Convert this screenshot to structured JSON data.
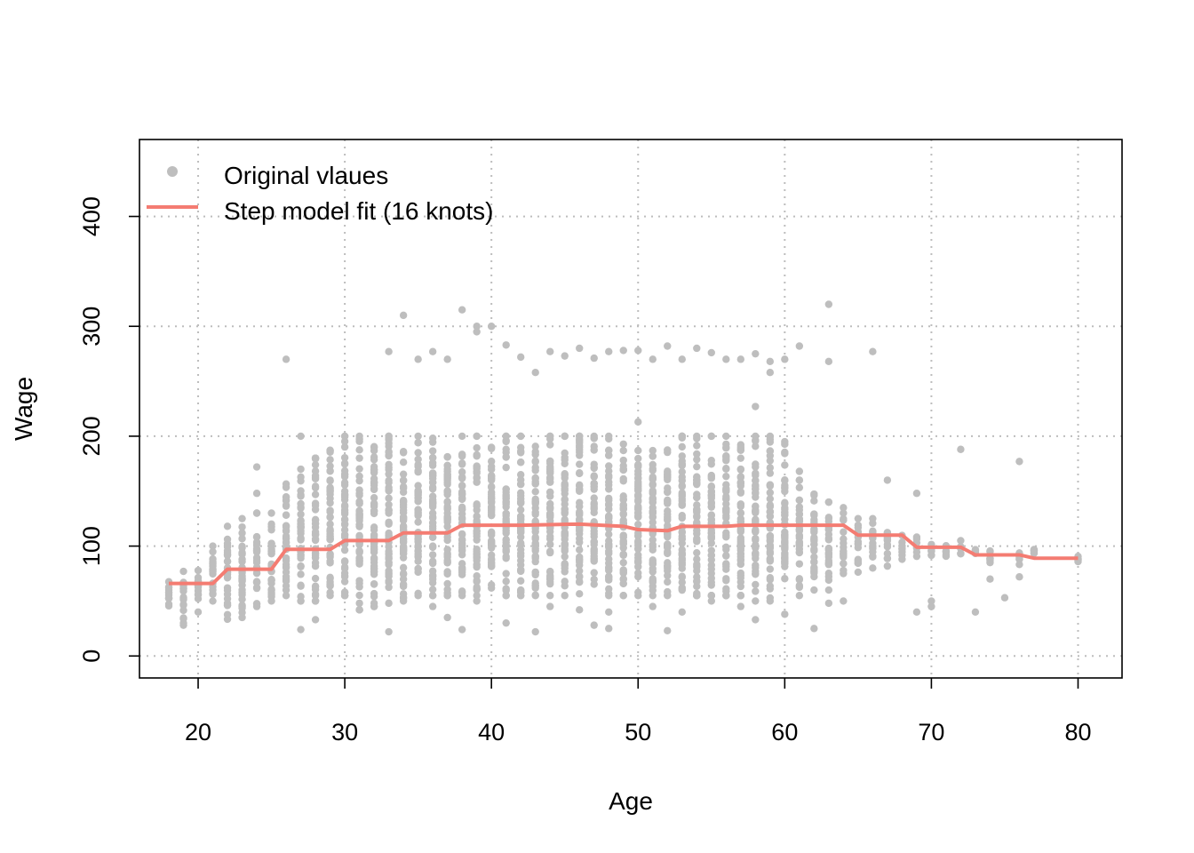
{
  "chart_data": {
    "type": "scatter",
    "title": "",
    "xlabel": "Age",
    "ylabel": "Wage",
    "xlim": [
      16,
      83
    ],
    "ylim": [
      -20,
      470
    ],
    "xticks": [
      20,
      30,
      40,
      50,
      60,
      70,
      80
    ],
    "yticks": [
      0,
      100,
      200,
      300,
      400
    ],
    "grid": true,
    "legend_position": "top-left",
    "colors": {
      "points": "#bebebe",
      "fit": "#f47c72"
    },
    "series": [
      {
        "name": "Original vlaues",
        "type": "scatter",
        "bands": [
          [
            18,
            42,
            77
          ],
          [
            19,
            30,
            77
          ],
          [
            20,
            45,
            82
          ],
          [
            21,
            55,
            106
          ],
          [
            22,
            32,
            118
          ],
          [
            23,
            35,
            125
          ],
          [
            24,
            45,
            130
          ],
          [
            25,
            50,
            130
          ],
          [
            26,
            55,
            160
          ],
          [
            27,
            50,
            170
          ],
          [
            28,
            50,
            180
          ],
          [
            29,
            55,
            190
          ],
          [
            30,
            55,
            200
          ],
          [
            31,
            42,
            200
          ],
          [
            32,
            45,
            200
          ],
          [
            33,
            45,
            200
          ],
          [
            34,
            50,
            200
          ],
          [
            35,
            55,
            200
          ],
          [
            36,
            55,
            200
          ],
          [
            37,
            55,
            200
          ],
          [
            38,
            55,
            200
          ],
          [
            39,
            55,
            200
          ],
          [
            40,
            55,
            200
          ],
          [
            41,
            55,
            200
          ],
          [
            42,
            55,
            200
          ],
          [
            43,
            55,
            200
          ],
          [
            44,
            55,
            200
          ],
          [
            45,
            55,
            200
          ],
          [
            46,
            55,
            200
          ],
          [
            47,
            55,
            200
          ],
          [
            48,
            55,
            200
          ],
          [
            49,
            55,
            200
          ],
          [
            50,
            55,
            200
          ],
          [
            51,
            55,
            200
          ],
          [
            52,
            55,
            200
          ],
          [
            53,
            55,
            200
          ],
          [
            54,
            55,
            200
          ],
          [
            55,
            55,
            200
          ],
          [
            56,
            55,
            200
          ],
          [
            57,
            55,
            200
          ],
          [
            58,
            50,
            200
          ],
          [
            59,
            50,
            200
          ],
          [
            60,
            50,
            195
          ],
          [
            61,
            55,
            160
          ],
          [
            62,
            60,
            150
          ],
          [
            63,
            60,
            140
          ],
          [
            64,
            75,
            130
          ],
          [
            65,
            75,
            125
          ],
          [
            66,
            80,
            125
          ],
          [
            67,
            80,
            120
          ],
          [
            68,
            90,
            110
          ],
          [
            69,
            90,
            110
          ],
          [
            70,
            90,
            105
          ],
          [
            71,
            90,
            105
          ],
          [
            72,
            92,
            100
          ],
          [
            73,
            92,
            100
          ],
          [
            74,
            85,
            98
          ],
          [
            76,
            80,
            95
          ],
          [
            77,
            90,
            98
          ],
          [
            80,
            85,
            92
          ]
        ],
        "x": [
          26,
          27,
          33,
          35,
          37,
          39,
          40,
          42,
          43,
          45,
          47,
          50,
          52,
          55,
          57,
          59,
          60,
          63,
          61,
          66,
          34,
          38,
          39,
          44,
          46,
          48,
          51,
          53,
          56,
          58,
          59,
          63,
          36,
          41,
          49,
          54,
          50,
          58,
          19,
          24,
          25,
          27,
          28,
          31,
          33,
          37,
          41,
          43,
          47,
          48,
          52,
          58,
          60,
          62,
          64,
          66,
          68,
          69,
          70,
          72,
          73,
          74,
          75,
          76,
          24,
          29,
          31,
          35,
          40,
          42,
          46,
          49,
          53,
          57,
          61,
          64,
          67,
          69,
          70,
          72,
          74,
          76,
          18,
          20,
          21,
          23,
          26,
          28,
          32,
          34,
          36,
          38,
          39,
          42,
          44,
          46,
          48,
          51,
          53,
          55,
          57,
          59,
          61,
          63
        ],
        "y": [
          270,
          200,
          277,
          270,
          270,
          295,
          300,
          272,
          258,
          273,
          271,
          278,
          282,
          276,
          270,
          268,
          270,
          268,
          282,
          277,
          310,
          315,
          300,
          277,
          280,
          277,
          270,
          270,
          270,
          275,
          258,
          320,
          277,
          283,
          278,
          280,
          213,
          227,
          28,
          172,
          120,
          24,
          33,
          42,
          22,
          35,
          30,
          22,
          28,
          25,
          23,
          33,
          38,
          25,
          50,
          125,
          88,
          40,
          45,
          188,
          40,
          70,
          53,
          177,
          148,
          160,
          180,
          155,
          160,
          165,
          150,
          170,
          175,
          170,
          168,
          135,
          160,
          148,
          50,
          105,
          95,
          72,
          60,
          40,
          50,
          45,
          60,
          55,
          48,
          70,
          45,
          24,
          50,
          60,
          45,
          42,
          40,
          45,
          40,
          50,
          45,
          50,
          55,
          48
        ]
      },
      {
        "name": "Step model fit (16 knots)",
        "type": "line",
        "x": [
          18,
          21,
          22,
          25,
          26,
          29,
          30,
          33,
          34,
          37,
          38,
          42,
          46,
          49,
          50,
          52,
          53,
          56,
          57,
          64,
          65,
          68,
          69,
          72,
          73,
          76,
          77,
          80
        ],
        "y": [
          66,
          66,
          79,
          79,
          97,
          97,
          105,
          105,
          112,
          112,
          119,
          119,
          120,
          118,
          115,
          114,
          118,
          118,
          119,
          119,
          110,
          110,
          99,
          99,
          92,
          92,
          89,
          89
        ]
      }
    ]
  }
}
